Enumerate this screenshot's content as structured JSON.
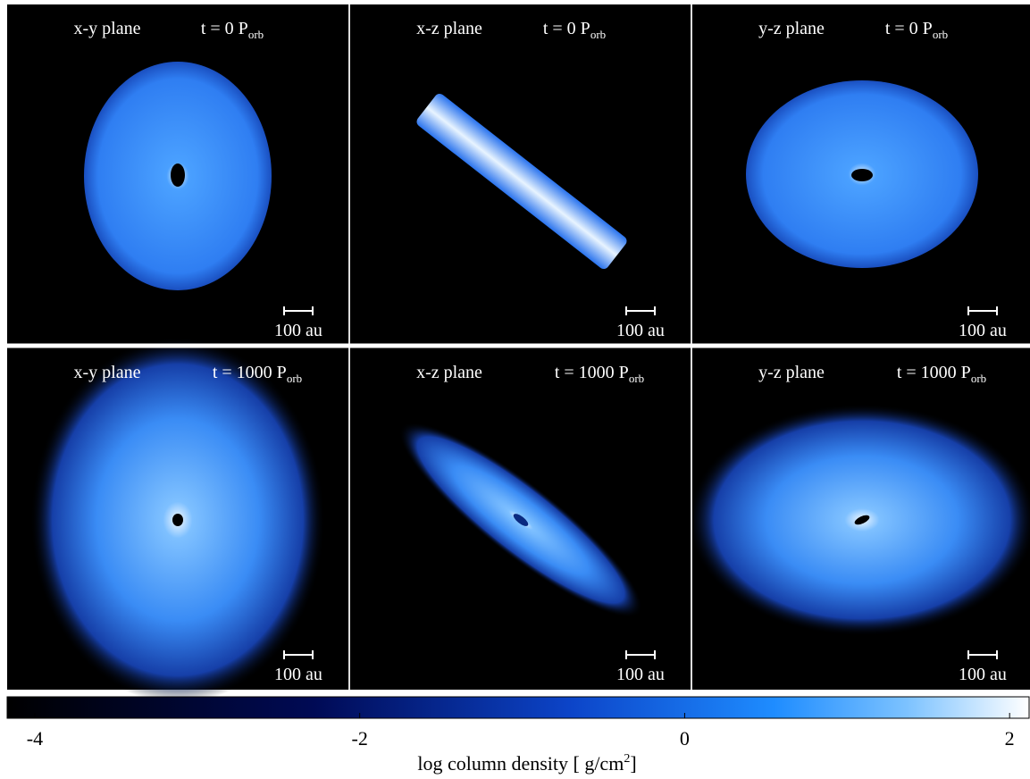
{
  "panels": [
    {
      "plane": "x-y plane",
      "time": {
        "text": "t = 0 P",
        "sub": "orb"
      },
      "scale": "100 au"
    },
    {
      "plane": "x-z plane",
      "time": {
        "text": "t = 0 P",
        "sub": "orb"
      },
      "scale": "100 au"
    },
    {
      "plane": "y-z plane",
      "time": {
        "text": "t = 0 P",
        "sub": "orb"
      },
      "scale": "100 au"
    },
    {
      "plane": "x-y plane",
      "time": {
        "text": "t = 1000 P",
        "sub": "orb"
      },
      "scale": "100 au"
    },
    {
      "plane": "x-z plane",
      "time": {
        "text": "t = 1000 P",
        "sub": "orb"
      },
      "scale": "100 au"
    },
    {
      "plane": "y-z plane",
      "time": {
        "text": "t = 1000 P",
        "sub": "orb"
      },
      "scale": "100 au"
    }
  ],
  "colorbar": {
    "lim": [
      -4.17,
      2.12
    ],
    "ticks": [
      -4,
      -2,
      0,
      2
    ],
    "label": {
      "text": "log column density [ g/cm",
      "sup": "2",
      "after": "]"
    }
  }
}
